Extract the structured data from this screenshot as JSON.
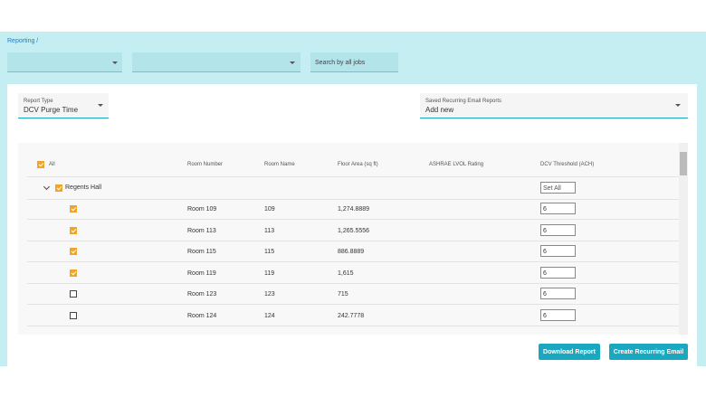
{
  "breadcrumb": "Reporting /",
  "filters": {
    "search_placeholder": "Search by all jobs"
  },
  "report_type": {
    "label": "Report Type",
    "value": "DCV Purge Time"
  },
  "saved_reports": {
    "label": "Saved Recurring Email Reports",
    "value": "Add new"
  },
  "table": {
    "columns": [
      "All",
      "Room Number",
      "Room Name",
      "Floor Area (sq ft)",
      "ASHRAE LVOL Rating",
      "DCV Threshold (ACH)"
    ],
    "group": {
      "name": "Regents Hall",
      "set_all": "Set All"
    },
    "rows": [
      {
        "room_number": "Room 109",
        "room_name": "109",
        "floor_area": "1,274.8889",
        "threshold": "6",
        "checked": true
      },
      {
        "room_number": "Room 113",
        "room_name": "113",
        "floor_area": "1,265.5556",
        "threshold": "6",
        "checked": true
      },
      {
        "room_number": "Room 115",
        "room_name": "115",
        "floor_area": "886.8889",
        "threshold": "6",
        "checked": true
      },
      {
        "room_number": "Room 119",
        "room_name": "119",
        "floor_area": "1,615",
        "threshold": "6",
        "checked": true
      },
      {
        "room_number": "Room 123",
        "room_name": "123",
        "floor_area": "715",
        "threshold": "6",
        "checked": false
      },
      {
        "room_number": "Room 124",
        "room_name": "124",
        "floor_area": "242.7778",
        "threshold": "6",
        "checked": false
      }
    ]
  },
  "buttons": {
    "download": "Download Report",
    "create": "Create Recurring Email"
  }
}
